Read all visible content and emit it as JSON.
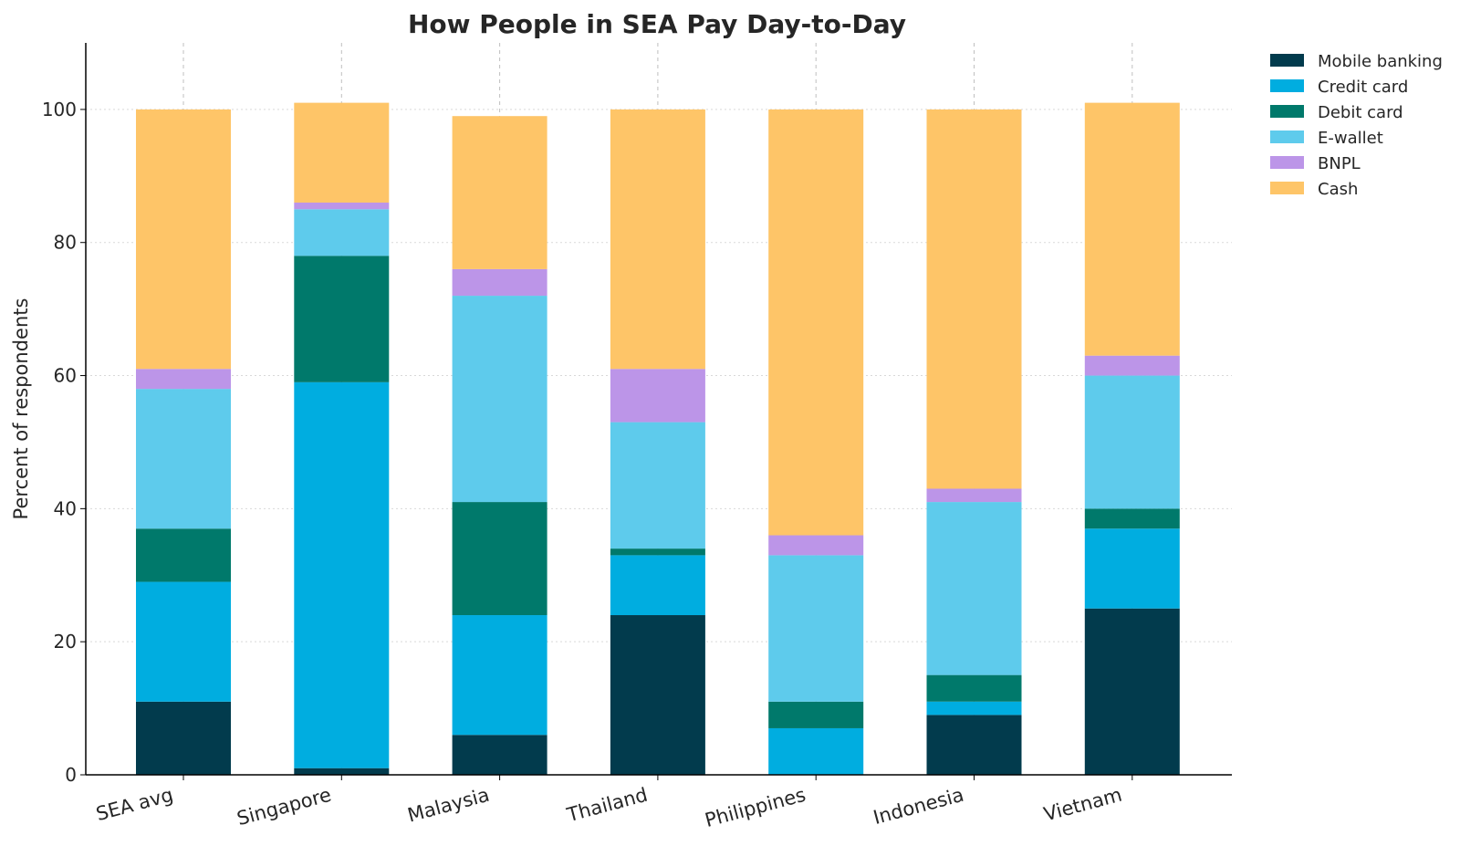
{
  "chart_data": {
    "type": "bar",
    "stacked": true,
    "title": "How People in SEA Pay Day-to-Day",
    "xlabel": "",
    "ylabel": "Percent of respondents",
    "ylim": [
      0,
      110
    ],
    "yticks": [
      0,
      20,
      40,
      60,
      80,
      100
    ],
    "grid": true,
    "legend_position": "top-right",
    "categories": [
      "SEA avg",
      "Singapore",
      "Malaysia",
      "Thailand",
      "Philippines",
      "Indonesia",
      "Vietnam"
    ],
    "series": [
      {
        "name": "Mobile banking",
        "color": "#023b4d",
        "values": [
          11,
          1,
          6,
          24,
          0,
          9,
          25
        ]
      },
      {
        "name": "Credit card",
        "color": "#00ade0",
        "values": [
          18,
          58,
          18,
          9,
          7,
          2,
          12
        ]
      },
      {
        "name": "Debit card",
        "color": "#00796b",
        "values": [
          8,
          19,
          17,
          1,
          4,
          4,
          3
        ]
      },
      {
        "name": "E-wallet",
        "color": "#5ecbec",
        "values": [
          21,
          7,
          31,
          19,
          22,
          26,
          20
        ]
      },
      {
        "name": "BNPL",
        "color": "#bc95e8",
        "values": [
          3,
          1,
          4,
          8,
          3,
          2,
          3
        ]
      },
      {
        "name": "Cash",
        "color": "#fec568",
        "values": [
          39,
          15,
          23,
          39,
          64,
          57,
          38
        ]
      }
    ]
  }
}
